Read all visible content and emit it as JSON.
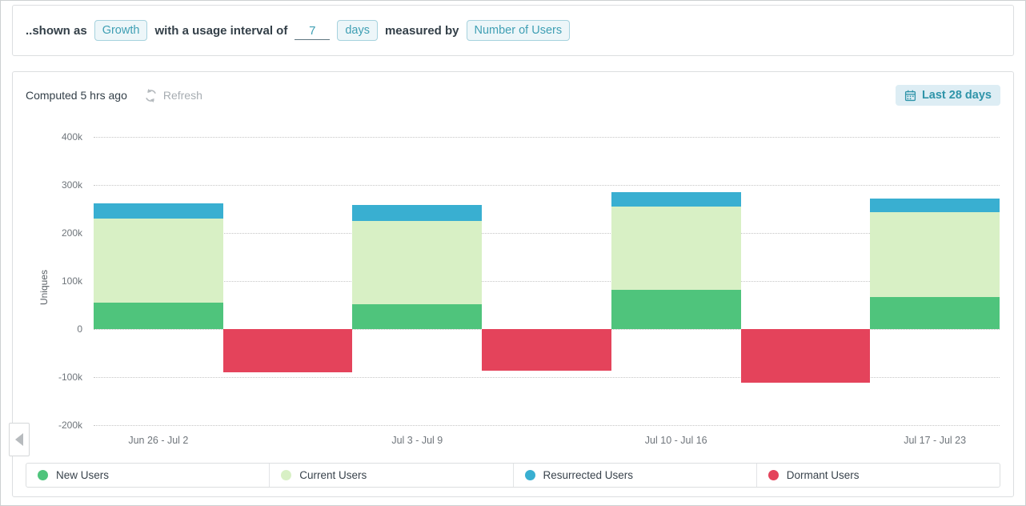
{
  "query_bar": {
    "shown_as_label": "..shown as",
    "growth_chip": "Growth",
    "interval_label": "with a usage interval of",
    "interval_value": "7",
    "unit_chip": "days",
    "measured_by_label": "measured by",
    "metric_chip": "Number of Users"
  },
  "panel": {
    "computed_text": "Computed 5 hrs ago",
    "refresh_label": "Refresh",
    "date_range_label": "Last 28 days"
  },
  "colors": {
    "accent_teal": "#3f9fb4",
    "chip_bg": "#edf6f9",
    "chip_border": "#a6d2de",
    "daterange_bg": "#ddedf4",
    "gridline": "#c6c6c6",
    "new_users": "#4fc47c",
    "current_users": "#d8f0c5",
    "resurrected_users": "#39afd1",
    "dormant_users": "#e4435b"
  },
  "icons": {
    "refresh": "refresh-circular-arrows-icon",
    "calendar": "calendar-icon",
    "prev": "left-arrow-icon"
  },
  "chart_data": {
    "type": "bar",
    "stacked": true,
    "title": "",
    "ylabel": "Uniques",
    "categories": [
      "Jun 26 - Jul 2",
      "Jul 3 - Jul 9",
      "Jul 10 - Jul 16",
      "Jul 17 - Jul 23"
    ],
    "series": [
      {
        "name": "New Users",
        "color": "#4fc47c",
        "values": [
          55000,
          52000,
          82000,
          67000
        ]
      },
      {
        "name": "Current Users",
        "color": "#d8f0c5",
        "values": [
          175000,
          173000,
          173000,
          177000
        ]
      },
      {
        "name": "Resurrected Users",
        "color": "#39afd1",
        "values": [
          32000,
          33000,
          30000,
          28000
        ]
      },
      {
        "name": "Dormant Users",
        "color": "#e4435b",
        "values": [
          -90000,
          -87000,
          -112000,
          null
        ]
      }
    ],
    "ylim": [
      -200000,
      400000
    ],
    "ytick_step": 100000,
    "ytick_labels": [
      "400k",
      "300k",
      "200k",
      "100k",
      "0",
      "-100k",
      "-200k"
    ],
    "grid": "horizontal-dotted",
    "legend_position": "bottom"
  }
}
